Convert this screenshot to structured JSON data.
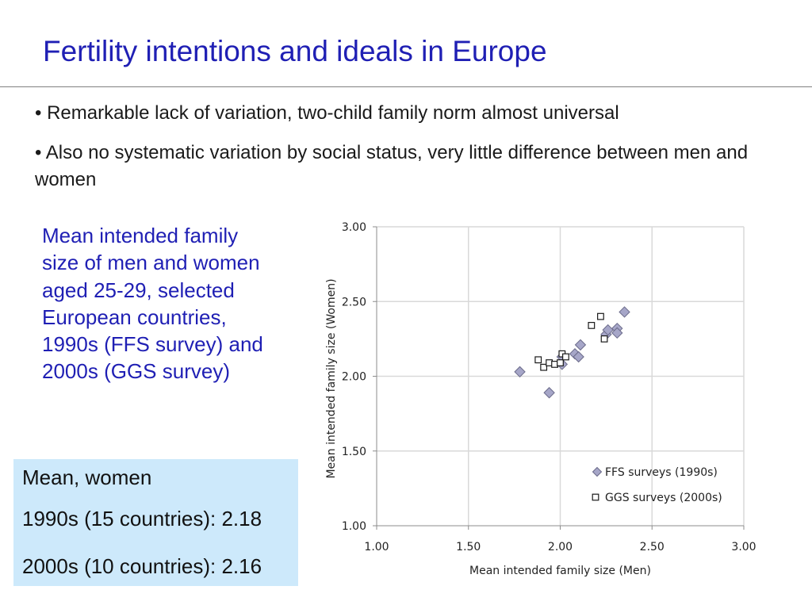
{
  "slide": {
    "title": "Fertility intentions and ideals in Europe",
    "bullets": [
      "• Remarkable lack of variation, two-child family norm almost universal",
      "• Also no systematic variation by social status, very little difference between men and women"
    ],
    "caption": "Mean intended family size of men and women aged 25-29, selected European countries, 1990s (FFS survey) and 2000s (GGS survey)",
    "mean_box": {
      "heading": "Mean, women",
      "line_1990s": "1990s (15 countries): 2.18",
      "line_2000s": "2000s (10 countries): 2.16"
    }
  },
  "chart_data": {
    "type": "scatter",
    "xlabel": "Mean intended family size (Men)",
    "ylabel": "Mean intended family size (Women)",
    "xlim": [
      1.0,
      3.0
    ],
    "ylim": [
      1.0,
      3.0
    ],
    "x_ticks": [
      "1.00",
      "1.50",
      "2.00",
      "2.50",
      "3.00"
    ],
    "y_ticks": [
      "1.00",
      "1.50",
      "2.00",
      "2.50",
      "3.00"
    ],
    "grid": true,
    "legend_position": "bottom-right",
    "colors": {
      "ffs_fill": "#a6a6c8",
      "ffs_stroke": "#6b6b8a",
      "ggs_stroke": "#1a1a1a",
      "grid": "#d9d9d9"
    },
    "series": [
      {
        "name": "FFS surveys (1990s)",
        "marker": "diamond",
        "points": [
          [
            1.78,
            2.03
          ],
          [
            1.94,
            1.89
          ],
          [
            2.01,
            2.08
          ],
          [
            2.01,
            2.13
          ],
          [
            2.08,
            2.15
          ],
          [
            2.1,
            2.13
          ],
          [
            2.11,
            2.21
          ],
          [
            2.25,
            2.28
          ],
          [
            2.26,
            2.31
          ],
          [
            2.31,
            2.32
          ],
          [
            2.31,
            2.29
          ],
          [
            2.35,
            2.43
          ]
        ]
      },
      {
        "name": "GGS surveys (2000s)",
        "marker": "square",
        "points": [
          [
            1.88,
            2.11
          ],
          [
            1.91,
            2.06
          ],
          [
            1.94,
            2.09
          ],
          [
            1.97,
            2.08
          ],
          [
            2.0,
            2.09
          ],
          [
            2.01,
            2.15
          ],
          [
            2.03,
            2.13
          ],
          [
            2.17,
            2.34
          ],
          [
            2.22,
            2.4
          ],
          [
            2.24,
            2.25
          ]
        ]
      }
    ]
  }
}
